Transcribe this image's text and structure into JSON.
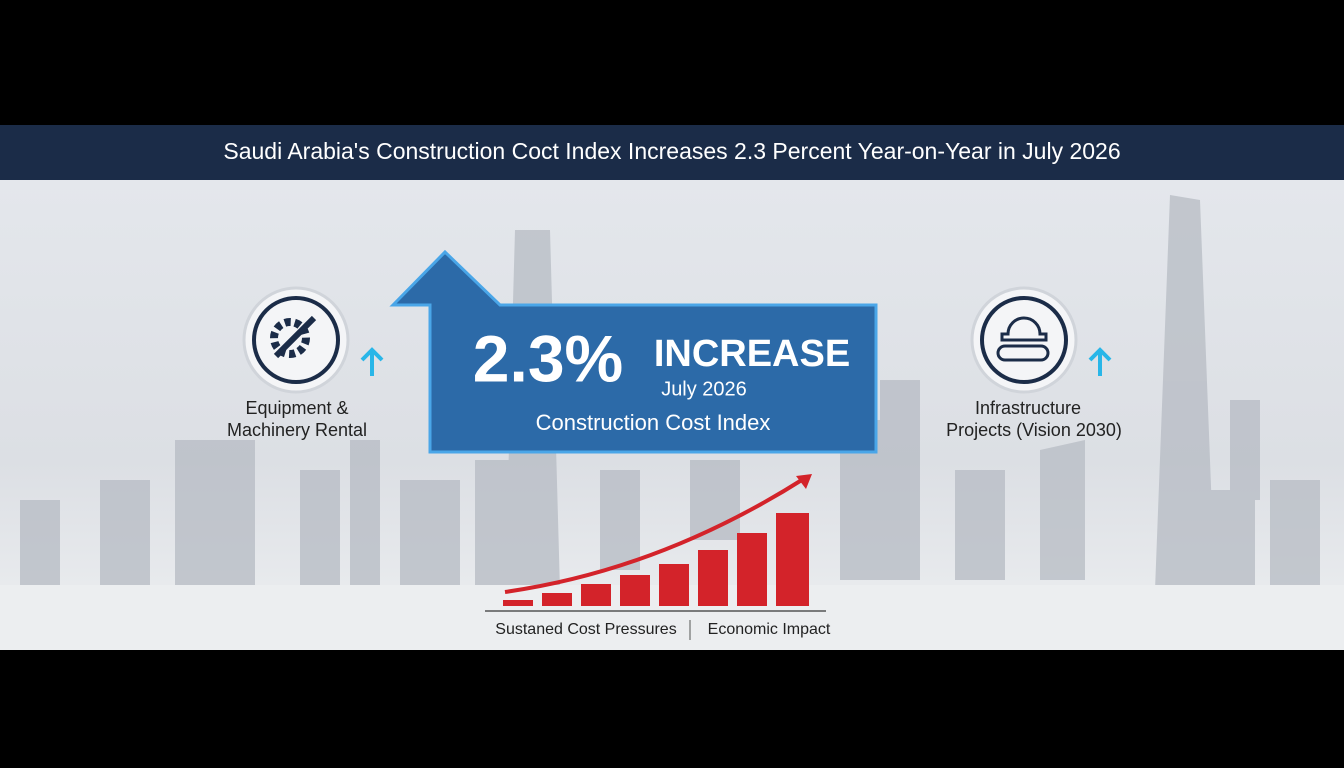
{
  "header": {
    "title": "Saudi Arabia's Construction Coct Index Increases 2.3 Percent Year-on-Year in July 2026"
  },
  "headline": {
    "figure": "2.3%",
    "word": "INCREASE",
    "date": "July 2026",
    "subject": "Construction Cost Index"
  },
  "left_item": {
    "lines": [
      "Equipment &",
      "Machinery Rental"
    ]
  },
  "right_item": {
    "lines": [
      "Infrastructure",
      "Projects (Vision 2030)"
    ]
  },
  "footer": {
    "items": [
      "Sustaned Cost Pressures",
      "Economic Impact"
    ]
  }
}
